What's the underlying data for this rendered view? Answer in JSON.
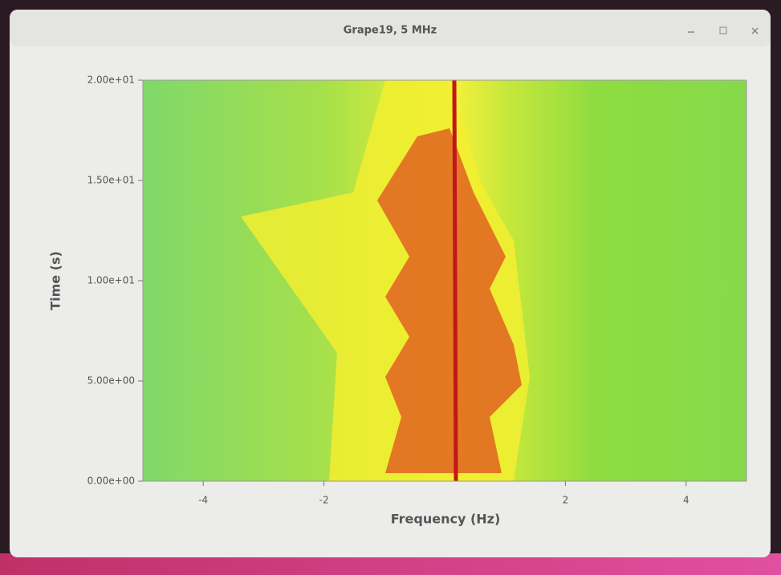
{
  "window": {
    "title": "Grape19, 5 MHz"
  },
  "chart_data": {
    "type": "spectrogram",
    "xlabel": "Frequency (Hz)",
    "ylabel": "Time (s)",
    "xlim": [
      -5,
      5
    ],
    "ylim": [
      0,
      20
    ],
    "xticks": [
      -4,
      -2,
      2,
      4
    ],
    "yticks": [
      {
        "value": 0,
        "label": "0.00e+00"
      },
      {
        "value": 5,
        "label": "5.00e+00"
      },
      {
        "value": 10,
        "label": "1.00e+01"
      },
      {
        "value": 15,
        "label": "1.50e+01"
      },
      {
        "value": 20,
        "label": "2.00e+01"
      }
    ]
  }
}
